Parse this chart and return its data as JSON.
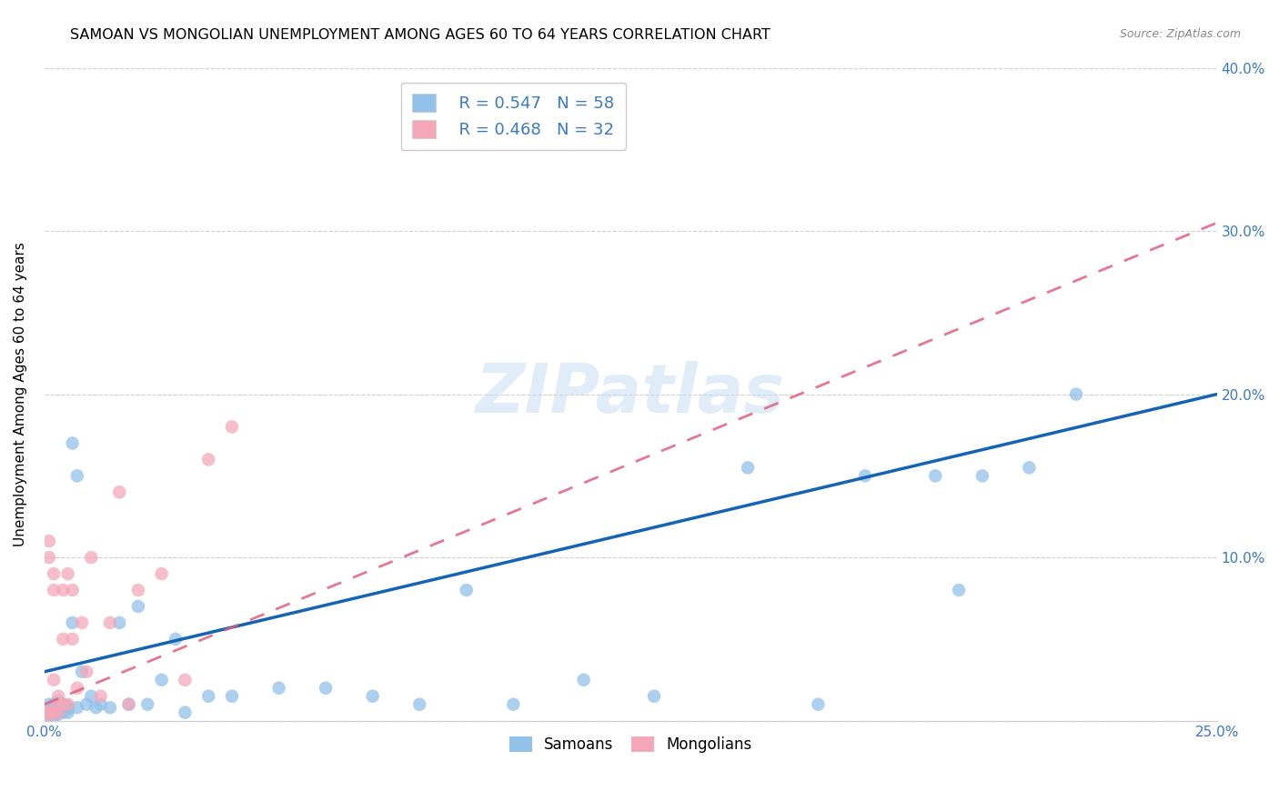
{
  "title": "SAMOAN VS MONGOLIAN UNEMPLOYMENT AMONG AGES 60 TO 64 YEARS CORRELATION CHART",
  "source": "Source: ZipAtlas.com",
  "ylabel": "Unemployment Among Ages 60 to 64 years",
  "xlim": [
    0.0,
    0.25
  ],
  "ylim": [
    0.0,
    0.4
  ],
  "xticks": [
    0.0,
    0.05,
    0.1,
    0.15,
    0.2,
    0.25
  ],
  "yticks": [
    0.0,
    0.1,
    0.2,
    0.3,
    0.4
  ],
  "xtick_labels": [
    "0.0%",
    "",
    "",
    "",
    "",
    "25.0%"
  ],
  "ytick_labels_left": [
    "",
    "",
    "",
    "",
    ""
  ],
  "ytick_labels_right": [
    "",
    "10.0%",
    "20.0%",
    "30.0%",
    "40.0%"
  ],
  "samoan_color": "#92C1E9",
  "mongolian_color": "#F4A7B9",
  "samoan_line_color": "#1464B4",
  "mongolian_line_color": "#E06080",
  "legend_r_samoan": "R = 0.547",
  "legend_n_samoan": "N = 58",
  "legend_r_mongolian": "R = 0.468",
  "legend_n_mongolian": "N = 32",
  "watermark": "ZIPatlas",
  "background_color": "#ffffff",
  "grid_color": "#d0d0d0",
  "samoans_label": "Samoans",
  "mongolians_label": "Mongolians",
  "legend_text_color": "#3a7abf",
  "samoan_x": [
    0.0,
    0.001,
    0.001,
    0.001,
    0.001,
    0.001,
    0.002,
    0.002,
    0.002,
    0.002,
    0.002,
    0.003,
    0.003,
    0.003,
    0.003,
    0.003,
    0.004,
    0.004,
    0.004,
    0.004,
    0.005,
    0.005,
    0.005,
    0.006,
    0.006,
    0.007,
    0.007,
    0.008,
    0.009,
    0.01,
    0.011,
    0.012,
    0.014,
    0.016,
    0.018,
    0.02,
    0.022,
    0.025,
    0.028,
    0.03,
    0.035,
    0.04,
    0.05,
    0.06,
    0.07,
    0.08,
    0.09,
    0.1,
    0.115,
    0.13,
    0.15,
    0.165,
    0.175,
    0.19,
    0.195,
    0.2,
    0.21,
    0.22
  ],
  "samoan_y": [
    0.005,
    0.003,
    0.005,
    0.006,
    0.008,
    0.01,
    0.003,
    0.005,
    0.007,
    0.008,
    0.01,
    0.004,
    0.006,
    0.007,
    0.009,
    0.012,
    0.005,
    0.006,
    0.008,
    0.01,
    0.005,
    0.007,
    0.009,
    0.06,
    0.17,
    0.008,
    0.15,
    0.03,
    0.01,
    0.015,
    0.008,
    0.01,
    0.008,
    0.06,
    0.01,
    0.07,
    0.01,
    0.025,
    0.05,
    0.005,
    0.015,
    0.015,
    0.02,
    0.02,
    0.015,
    0.01,
    0.08,
    0.01,
    0.025,
    0.015,
    0.155,
    0.01,
    0.15,
    0.15,
    0.08,
    0.15,
    0.155,
    0.2
  ],
  "mongolian_x": [
    0.0,
    0.001,
    0.001,
    0.001,
    0.001,
    0.002,
    0.002,
    0.002,
    0.002,
    0.003,
    0.003,
    0.003,
    0.004,
    0.004,
    0.004,
    0.005,
    0.005,
    0.006,
    0.006,
    0.007,
    0.008,
    0.009,
    0.01,
    0.012,
    0.014,
    0.016,
    0.018,
    0.02,
    0.025,
    0.03,
    0.035,
    0.04
  ],
  "mongolian_y": [
    0.005,
    0.003,
    0.006,
    0.1,
    0.11,
    0.005,
    0.08,
    0.09,
    0.025,
    0.005,
    0.01,
    0.015,
    0.01,
    0.05,
    0.08,
    0.01,
    0.09,
    0.05,
    0.08,
    0.02,
    0.06,
    0.03,
    0.1,
    0.015,
    0.06,
    0.14,
    0.01,
    0.08,
    0.09,
    0.025,
    0.16,
    0.18
  ]
}
